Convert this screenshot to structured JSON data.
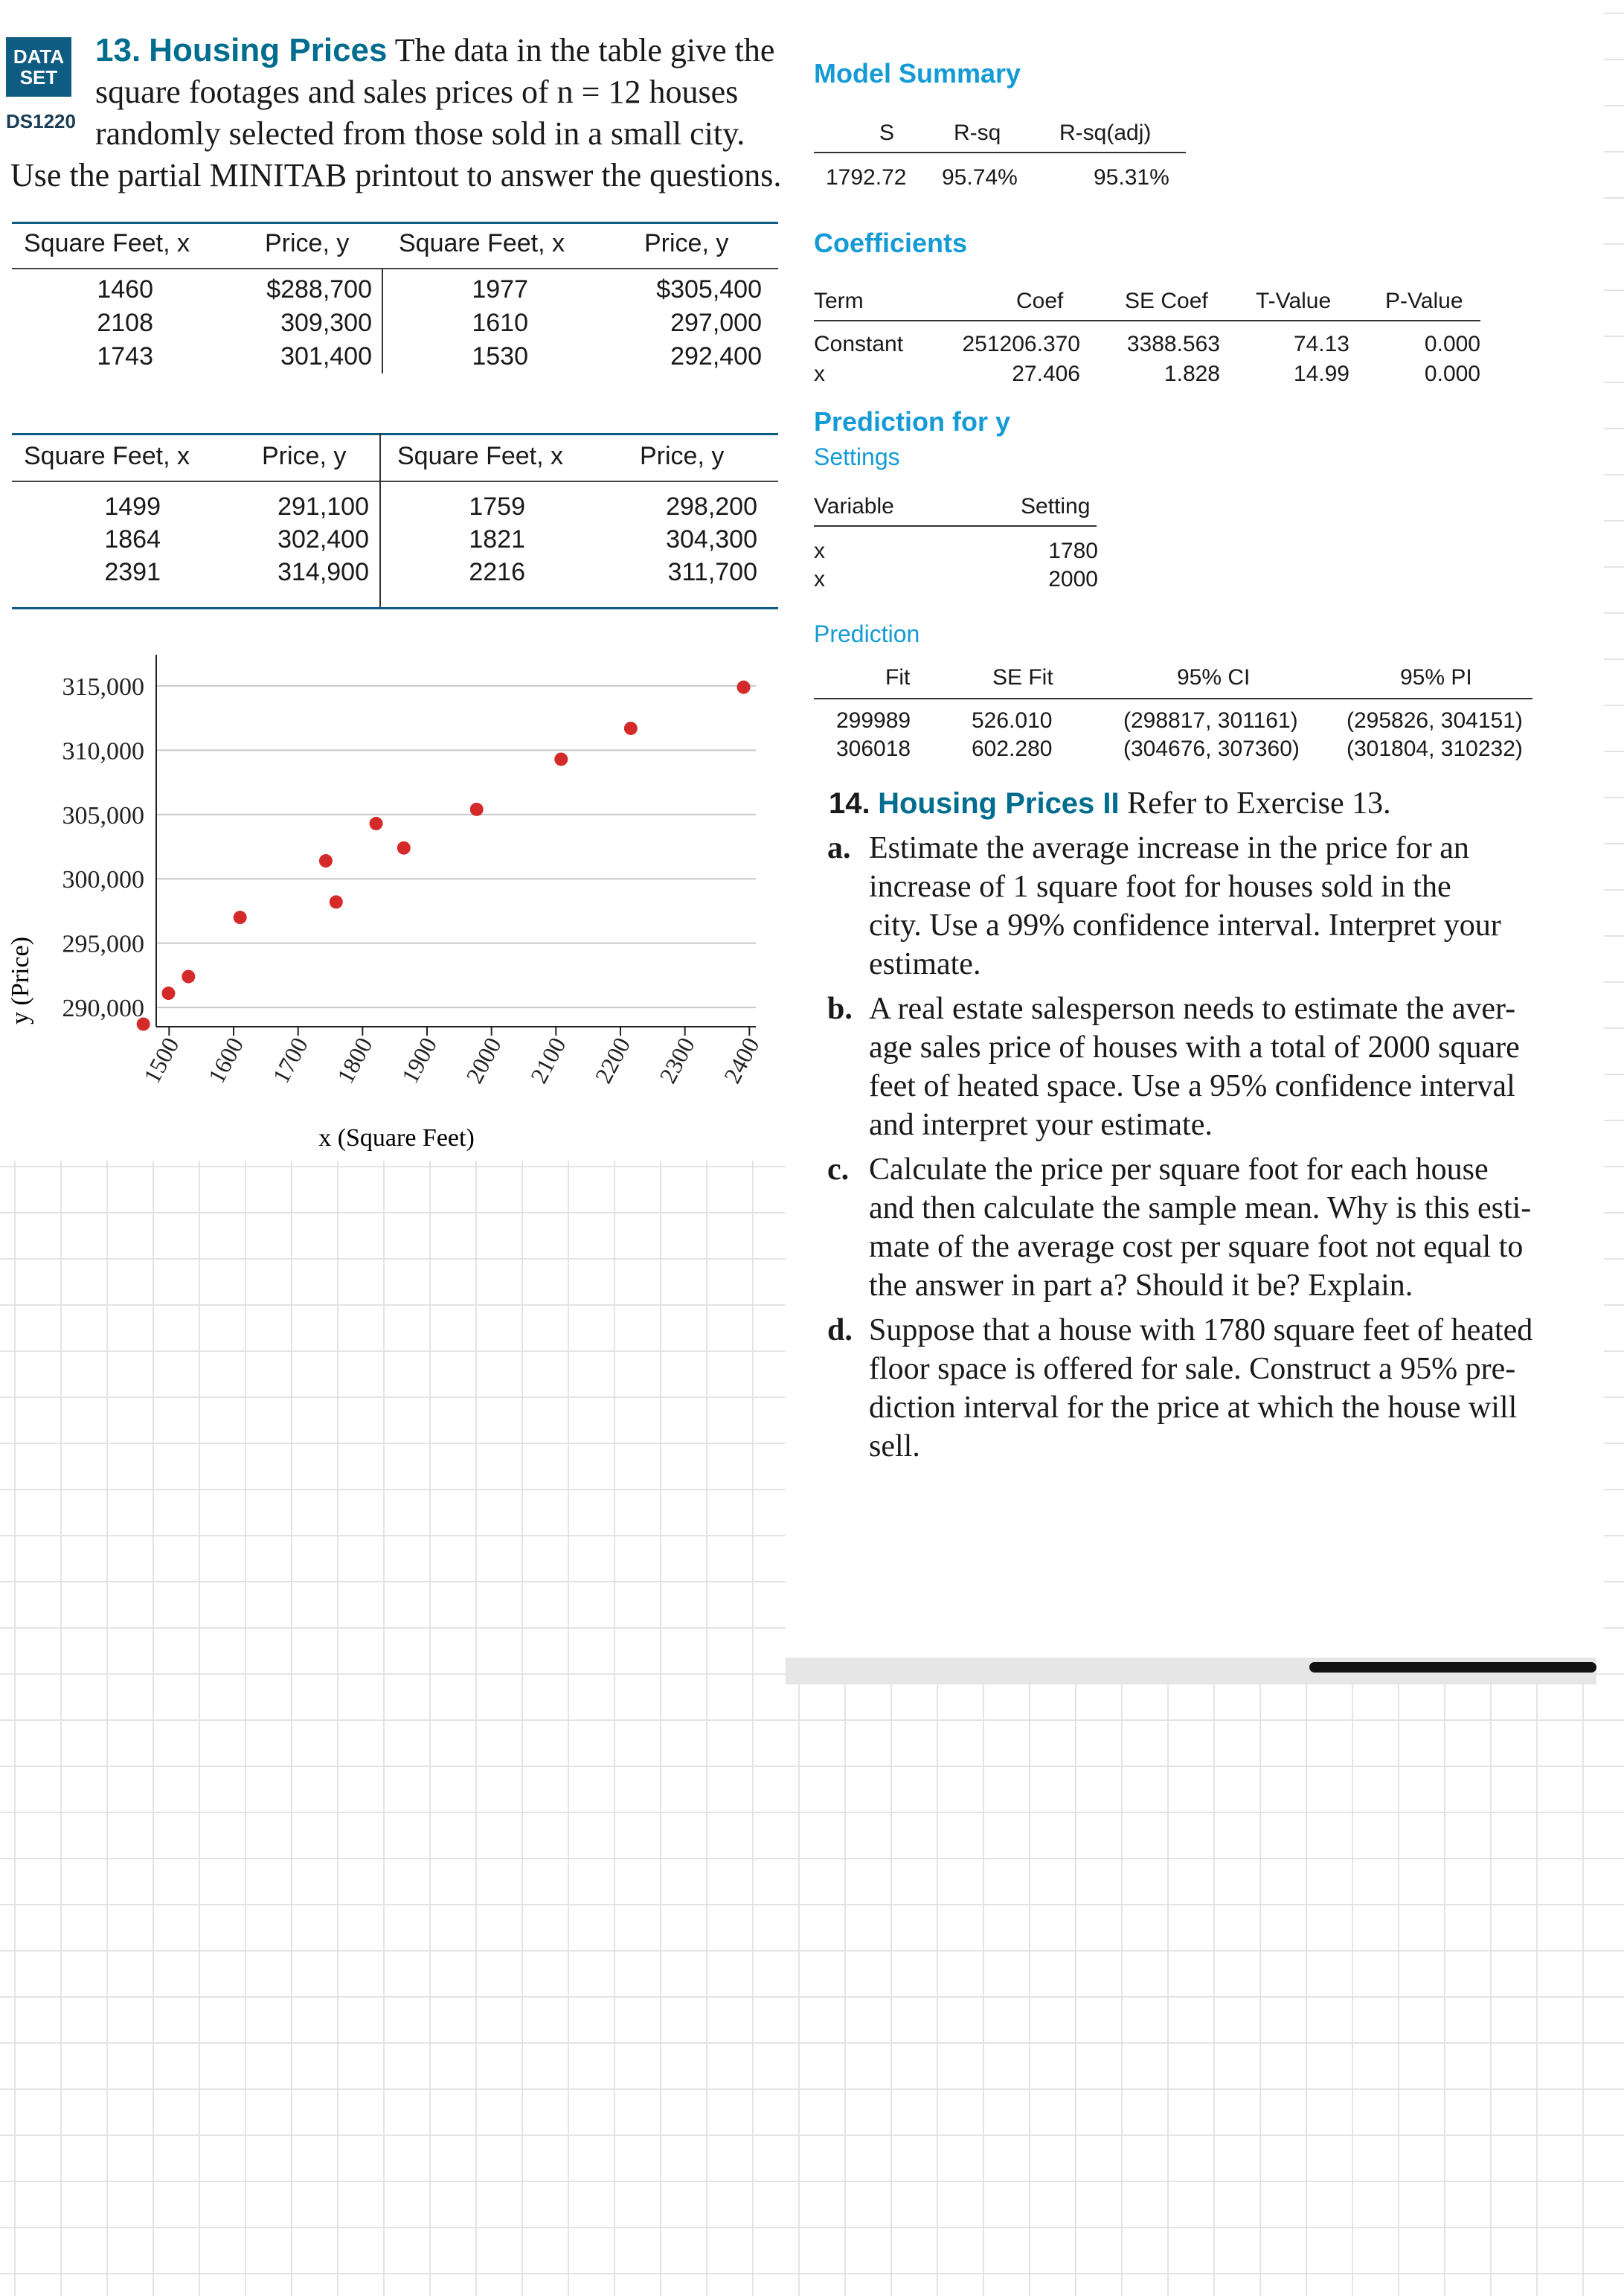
{
  "badge": {
    "line1": "DATA",
    "line2": "SET",
    "code": "DS1220"
  },
  "exercise13": {
    "number": "13.",
    "title": "Housing Prices",
    "intro_lines": [
      "The data in the table give the",
      "square footages and sales prices of n = 12 houses",
      "randomly selected from those sold in a small city.",
      "Use the partial MINITAB printout to answer the questions."
    ]
  },
  "table1": {
    "headers": [
      "Square Feet, x",
      "Price, y",
      "Square Feet, x",
      "Price, y"
    ],
    "rows": [
      [
        "1460",
        "$288,700",
        "1977",
        "$305,400"
      ],
      [
        "2108",
        "309,300",
        "1610",
        "297,000"
      ],
      [
        "1743",
        "301,400",
        "1530",
        "292,400"
      ]
    ]
  },
  "table2": {
    "headers": [
      "Square Feet, x",
      "Price, y",
      "Square Feet, x",
      "Price, y"
    ],
    "rows": [
      [
        "1499",
        "291,100",
        "1759",
        "298,200"
      ],
      [
        "1864",
        "302,400",
        "1821",
        "304,300"
      ],
      [
        "2391",
        "314,900",
        "2216",
        "311,700"
      ]
    ]
  },
  "chart_data": {
    "type": "scatter",
    "xlabel": "x (Square Feet)",
    "ylabel": "y (Price)",
    "xlim": [
      1480,
      2410
    ],
    "ylim": [
      288500,
      316500
    ],
    "xticks": [
      "1500",
      "1600",
      "1700",
      "1800",
      "1900",
      "2000",
      "2100",
      "2200",
      "2300",
      "2400"
    ],
    "yticks": [
      "290,000",
      "295,000",
      "300,000",
      "305,000",
      "310,000",
      "315,000"
    ],
    "grid": true,
    "marker_color": "#d42a2a",
    "points": [
      {
        "x": 1460,
        "y": 288700
      },
      {
        "x": 1499,
        "y": 291100
      },
      {
        "x": 1530,
        "y": 292400
      },
      {
        "x": 1610,
        "y": 297000
      },
      {
        "x": 1743,
        "y": 301400
      },
      {
        "x": 1759,
        "y": 298200
      },
      {
        "x": 1821,
        "y": 304300
      },
      {
        "x": 1864,
        "y": 302400
      },
      {
        "x": 1977,
        "y": 305400
      },
      {
        "x": 2108,
        "y": 309300
      },
      {
        "x": 2216,
        "y": 311700
      },
      {
        "x": 2391,
        "y": 314900
      }
    ]
  },
  "minitab": {
    "model_summary": {
      "title": "Model Summary",
      "headers": [
        "S",
        "R-sq",
        "R-sq(adj)"
      ],
      "values": [
        "1792.72",
        "95.74%",
        "95.31%"
      ]
    },
    "coefficients": {
      "title": "Coefficients",
      "headers": [
        "Term",
        "Coef",
        "SE Coef",
        "T-Value",
        "P-Value"
      ],
      "rows": [
        [
          "Constant",
          "251206.370",
          "3388.563",
          "74.13",
          "0.000"
        ],
        [
          "x",
          "27.406",
          "1.828",
          "14.99",
          "0.000"
        ]
      ]
    },
    "prediction_for_y": {
      "title": "Prediction for y",
      "settings_label": "Settings",
      "headers": [
        "Variable",
        "Setting"
      ],
      "rows": [
        [
          "x",
          "1780"
        ],
        [
          "x",
          "2000"
        ]
      ]
    },
    "prediction": {
      "title": "Prediction",
      "headers": [
        "Fit",
        "SE Fit",
        "95% CI",
        "95% PI"
      ],
      "rows": [
        [
          "299989",
          "526.010",
          "(298817, 301161)",
          "(295826, 304151)"
        ],
        [
          "306018",
          "602.280",
          "(304676, 307360)",
          "(301804, 310232)"
        ]
      ]
    }
  },
  "exercise14": {
    "number": "14.",
    "title": "Housing Prices II",
    "intro": "Refer to Exercise 13.",
    "parts": [
      {
        "label": "a.",
        "lines": [
          "Estimate the average increase in the price for an",
          "increase of 1 square foot for houses sold in the",
          "city. Use a 99% confidence interval. Interpret your",
          "estimate."
        ]
      },
      {
        "label": "b.",
        "lines": [
          "A real estate salesperson needs to estimate the aver-",
          "age sales price of houses with a total of 2000 square",
          "feet of heated space. Use a 95% confidence interval",
          "and interpret your estimate."
        ]
      },
      {
        "label": "c.",
        "lines": [
          "Calculate the price per square foot for each house",
          "and then calculate the sample mean. Why is this esti-",
          "mate of the average cost per square foot not equal to",
          "the answer in part a? Should it be? Explain."
        ]
      },
      {
        "label": "d.",
        "lines": [
          "Suppose that a house with 1780 square feet of heated",
          "floor space is offered for sale. Construct a 95% pre-",
          "diction interval for the price at which the house will",
          "sell."
        ]
      }
    ]
  }
}
